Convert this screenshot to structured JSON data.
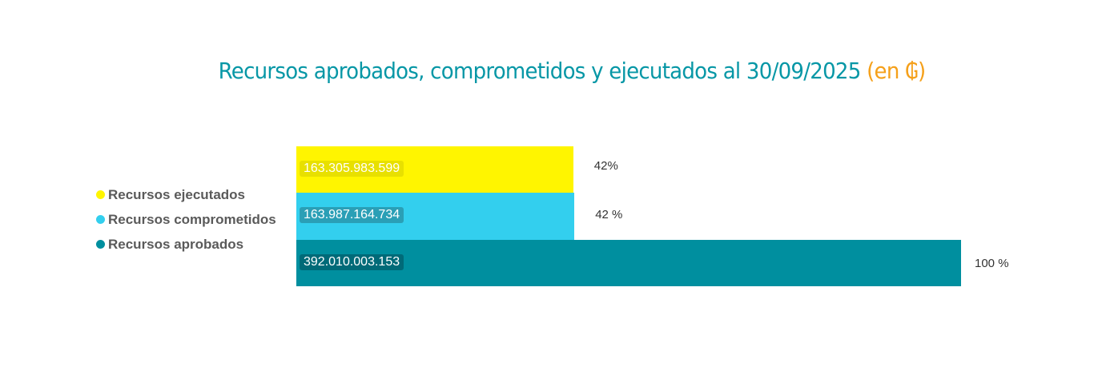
{
  "chart_data": {
    "type": "bar",
    "orientation": "horizontal",
    "title": "Recursos aprobados, comprometidos y ejecutados al 30/09/2025",
    "title_unit": "(en ₲)",
    "xlim": [
      0,
      392010003153
    ],
    "legend_placement": "left",
    "series": [
      {
        "name": "Recursos ejecutados",
        "value": 163305983599,
        "value_label": "163.305.983.599",
        "percent_label": "42%",
        "color": "#fff500",
        "label_bg": "#e8e000"
      },
      {
        "name": "Recursos comprometidos",
        "value": 163987164734,
        "value_label": "163.987.164.734",
        "percent_label": "42 %",
        "color": "#33cfee",
        "label_bg": "#2a9fb6"
      },
      {
        "name": "Recursos aprobados",
        "value": 392010003153,
        "value_label": "392.010.003.153",
        "percent_label": "100 %",
        "color": "#008f9f",
        "label_bg": "#006a78"
      }
    ]
  }
}
